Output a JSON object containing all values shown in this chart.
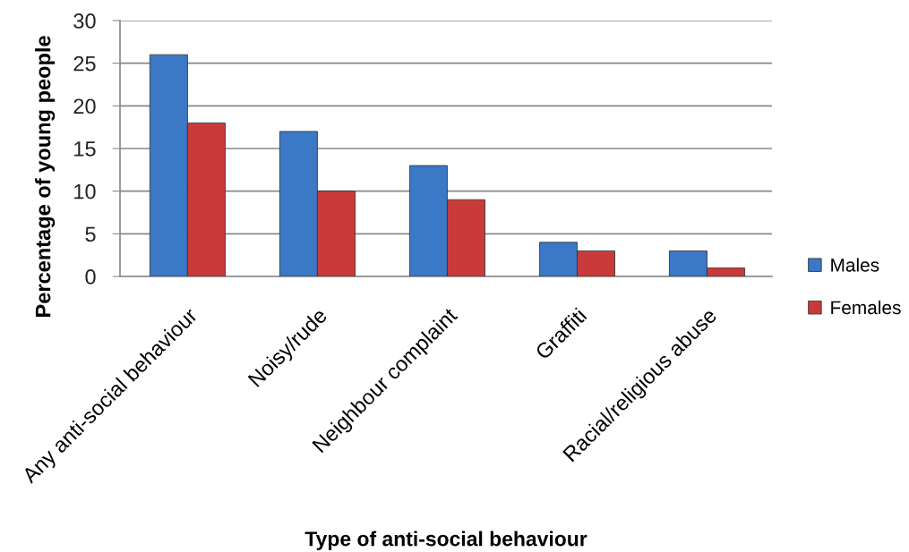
{
  "chart_data": {
    "type": "bar",
    "xlabel": "Type of anti-social behaviour",
    "ylabel": "Percentage of young people",
    "categories": [
      "Any anti-social behaviour",
      "Noisy/rude",
      "Neighbour complaint",
      "Graffiti",
      "Racial/religious abuse"
    ],
    "series": [
      {
        "name": "Males",
        "color": "#3b78c6",
        "values": [
          26,
          17,
          13,
          4,
          3
        ]
      },
      {
        "name": "Females",
        "color": "#c93a3a",
        "values": [
          18,
          10,
          9,
          3,
          1
        ]
      }
    ],
    "ylim": [
      0,
      30
    ],
    "yticks": [
      0,
      5,
      10,
      15,
      20,
      25,
      30
    ],
    "grid": "y",
    "legend": "right"
  }
}
